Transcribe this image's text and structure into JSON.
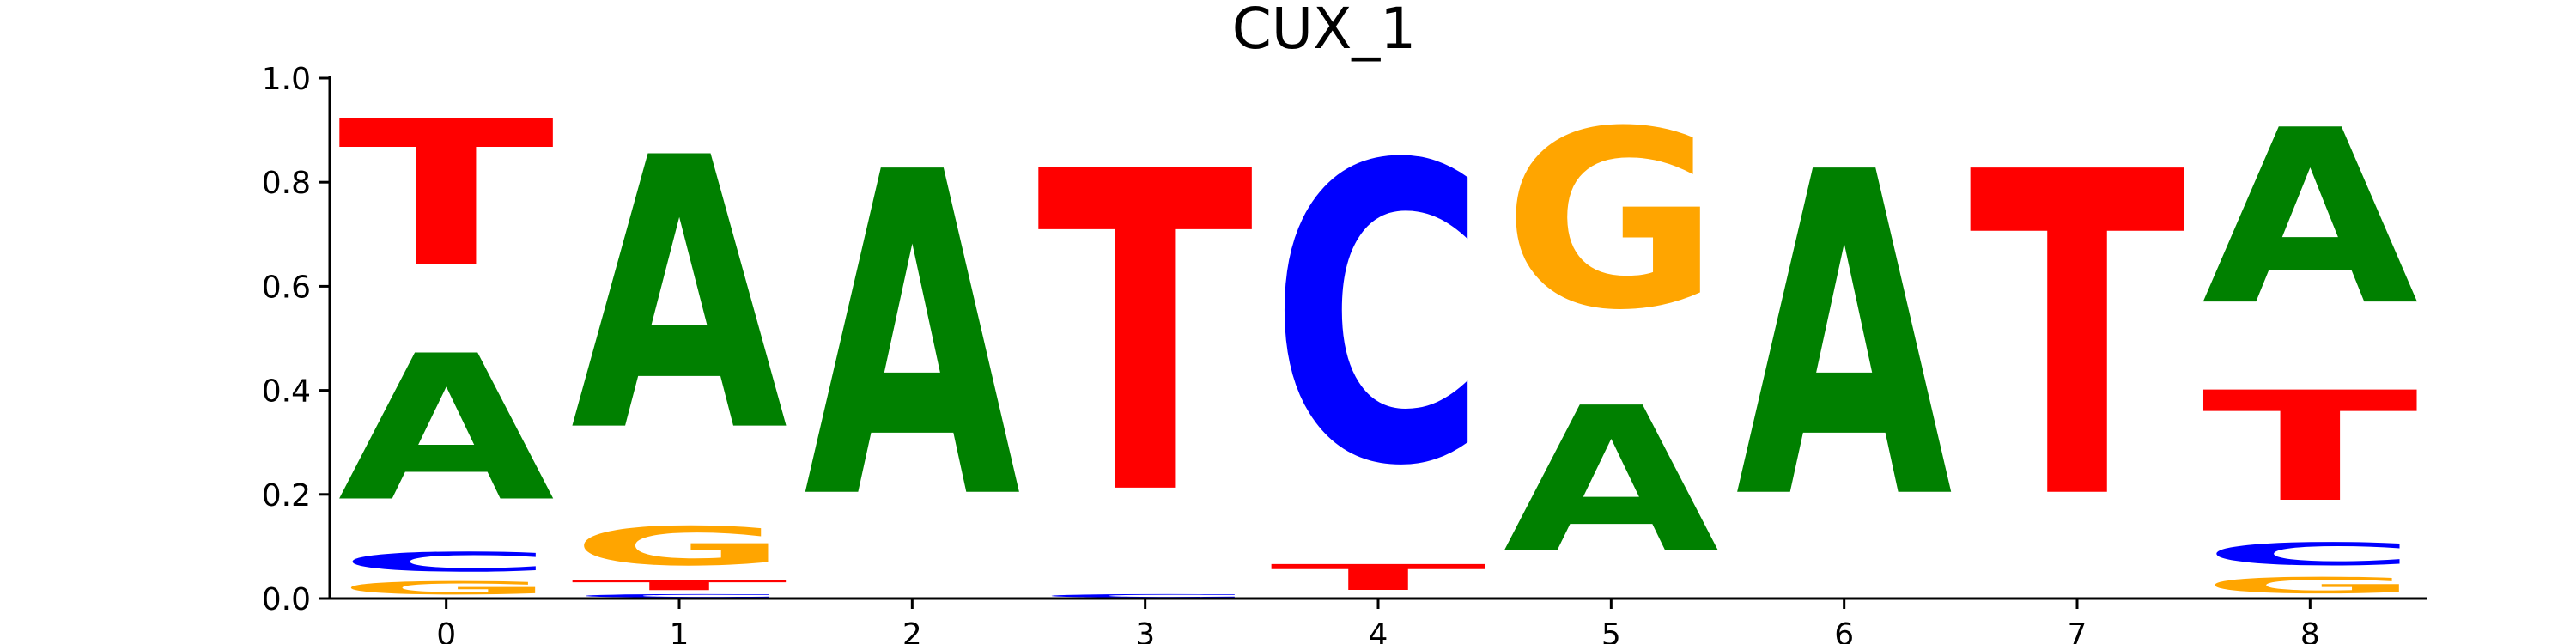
{
  "chart_data": {
    "type": "sequence-logo",
    "title": "CUX_1",
    "xlabel": "",
    "ylabel": "",
    "ylim": [
      0,
      1.0
    ],
    "yticks": [
      "0.0",
      "0.2",
      "0.4",
      "0.6",
      "0.8",
      "1.0"
    ],
    "positions": [
      "0",
      "1",
      "2",
      "3",
      "4",
      "5",
      "6",
      "7",
      "8"
    ],
    "colors": {
      "A": "#008000",
      "C": "#0000ff",
      "G": "#ffa500",
      "T": "#ff0000"
    },
    "grid": false,
    "stacks": [
      [
        {
          "base": "G",
          "value": 0.04
        },
        {
          "base": "C",
          "value": 0.06
        },
        {
          "base": "A",
          "value": 0.45
        },
        {
          "base": "T",
          "value": 0.45
        }
      ],
      [
        {
          "base": "C",
          "value": 0.01
        },
        {
          "base": "T",
          "value": 0.03
        },
        {
          "base": "G",
          "value": 0.12
        },
        {
          "base": "A",
          "value": 0.84
        }
      ],
      [
        {
          "base": "A",
          "value": 1.0
        }
      ],
      [
        {
          "base": "C",
          "value": 0.01
        },
        {
          "base": "T",
          "value": 0.99
        }
      ],
      [
        {
          "base": "T",
          "value": 0.08
        },
        {
          "base": "C",
          "value": 0.92
        }
      ],
      [
        {
          "base": "A",
          "value": 0.45
        },
        {
          "base": "G",
          "value": 0.55
        }
      ],
      [
        {
          "base": "A",
          "value": 1.0
        }
      ],
      [
        {
          "base": "T",
          "value": 1.0
        }
      ],
      [
        {
          "base": "G",
          "value": 0.05
        },
        {
          "base": "C",
          "value": 0.07
        },
        {
          "base": "T",
          "value": 0.34
        },
        {
          "base": "A",
          "value": 0.54
        }
      ]
    ]
  }
}
